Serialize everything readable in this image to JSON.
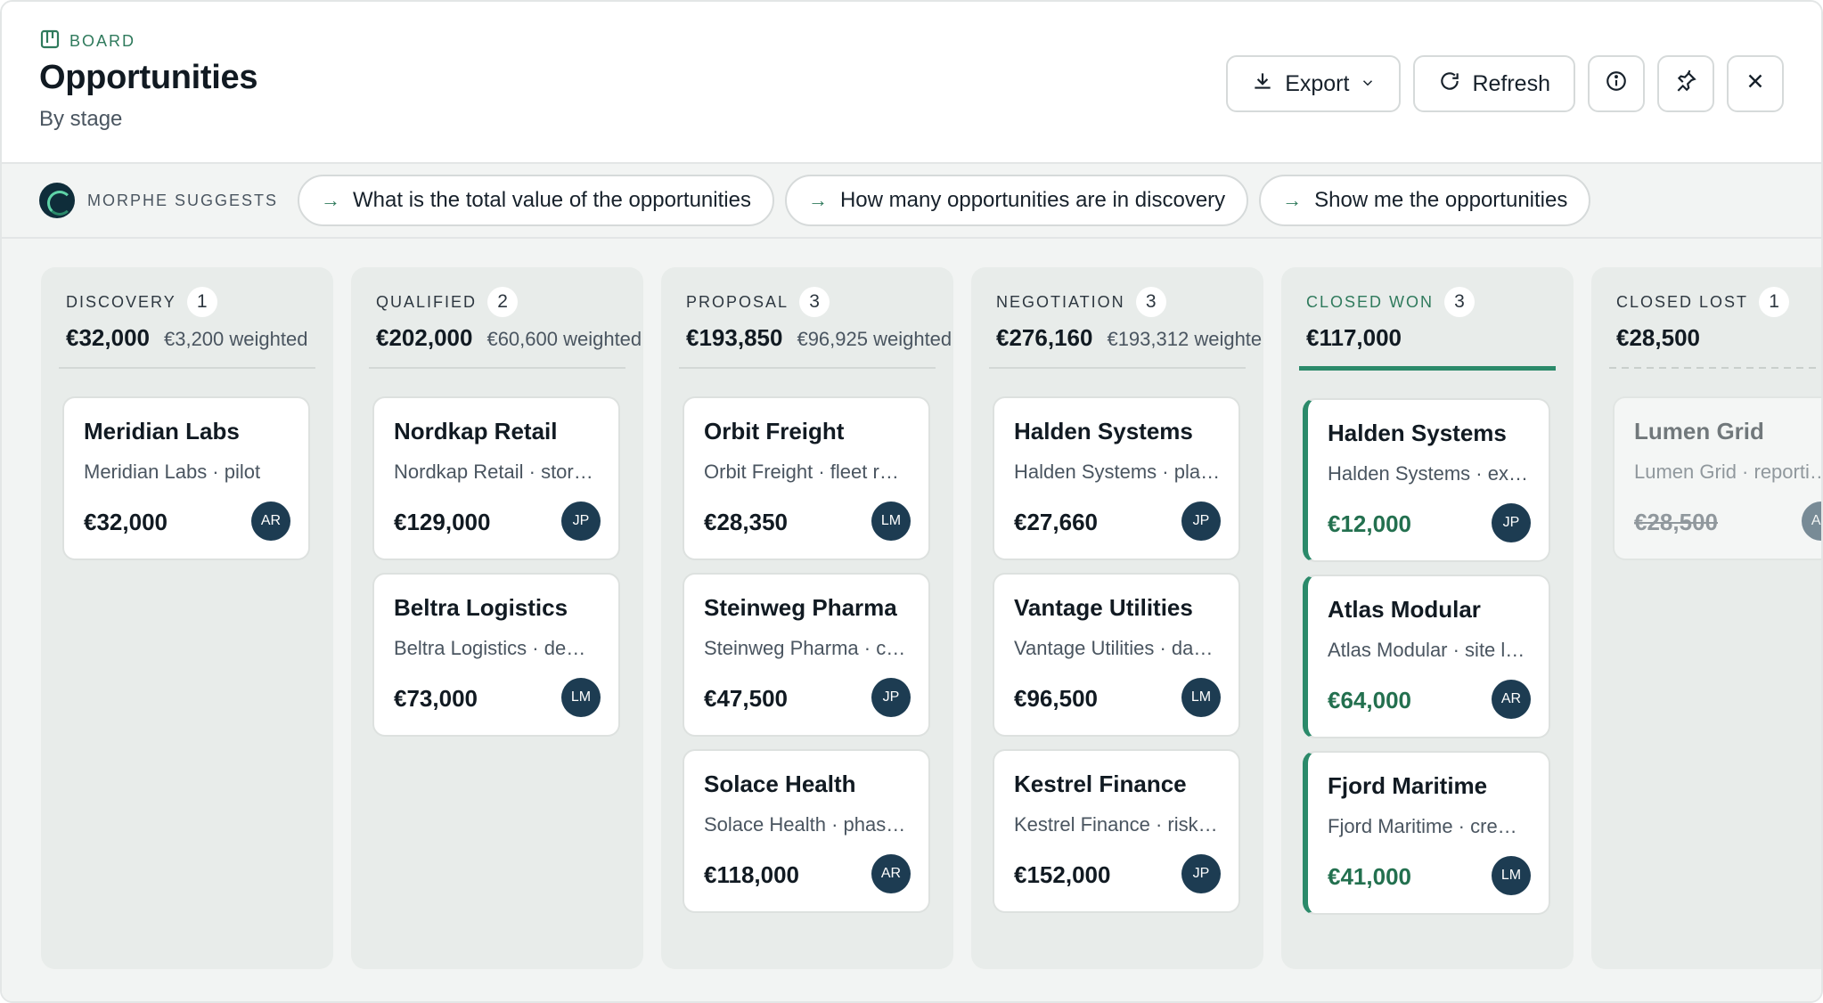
{
  "header": {
    "eyebrow": "BOARD",
    "title": "Opportunities",
    "subtitle": "By stage",
    "export_label": "Export",
    "refresh_label": "Refresh"
  },
  "suggest": {
    "label": "MORPHE SUGGESTS",
    "chips": [
      "What is the total value of the opportunities",
      "How many opportunities are in discovery",
      "Show me the opportunities"
    ]
  },
  "colors": {
    "accent": "#2b8a6a",
    "avatar": "#1d3c52",
    "board_bg": "#f2f4f3"
  },
  "columns": [
    {
      "name": "DISCOVERY",
      "count": "1",
      "total": "€32,000",
      "weighted": "€3,200 weighted",
      "style": "normal",
      "cards": [
        {
          "name": "Meridian Labs",
          "desc": "Meridian Labs · pilot",
          "value": "€32,000",
          "owner": "AR"
        }
      ]
    },
    {
      "name": "QUALIFIED",
      "count": "2",
      "total": "€202,000",
      "weighted": "€60,600 weighted",
      "style": "normal",
      "cards": [
        {
          "name": "Nordkap Retail",
          "desc": "Nordkap Retail · stor…",
          "value": "€129,000",
          "owner": "JP"
        },
        {
          "name": "Beltra Logistics",
          "desc": "Beltra Logistics · de…",
          "value": "€73,000",
          "owner": "LM"
        }
      ]
    },
    {
      "name": "PROPOSAL",
      "count": "3",
      "total": "€193,850",
      "weighted": "€96,925 weighted",
      "style": "normal",
      "cards": [
        {
          "name": "Orbit Freight",
          "desc": "Orbit Freight · fleet r…",
          "value": "€28,350",
          "owner": "LM"
        },
        {
          "name": "Steinweg Pharma",
          "desc": "Steinweg Pharma · c…",
          "value": "€47,500",
          "owner": "JP"
        },
        {
          "name": "Solace Health",
          "desc": "Solace Health · phas…",
          "value": "€118,000",
          "owner": "AR"
        }
      ]
    },
    {
      "name": "NEGOTIATION",
      "count": "3",
      "total": "€276,160",
      "weighted": "€193,312 weighte",
      "style": "normal",
      "cards": [
        {
          "name": "Halden Systems",
          "desc": "Halden Systems · pla…",
          "value": "€27,660",
          "owner": "JP"
        },
        {
          "name": "Vantage Utilities",
          "desc": "Vantage Utilities · da…",
          "value": "€96,500",
          "owner": "LM"
        },
        {
          "name": "Kestrel Finance",
          "desc": "Kestrel Finance · risk…",
          "value": "€152,000",
          "owner": "JP"
        }
      ]
    },
    {
      "name": "CLOSED WON",
      "count": "3",
      "total": "€117,000",
      "weighted": "",
      "style": "won",
      "cards": [
        {
          "name": "Halden Systems",
          "desc": "Halden Systems · ex…",
          "value": "€12,000",
          "owner": "JP"
        },
        {
          "name": "Atlas Modular",
          "desc": "Atlas Modular · site l…",
          "value": "€64,000",
          "owner": "AR"
        },
        {
          "name": "Fjord Maritime",
          "desc": "Fjord Maritime · cre…",
          "value": "€41,000",
          "owner": "LM"
        }
      ]
    },
    {
      "name": "CLOSED LOST",
      "count": "1",
      "total": "€28,500",
      "weighted": "",
      "style": "lost",
      "cards": [
        {
          "name": "Lumen Grid",
          "desc": "Lumen Grid · reporti…",
          "value": "€28,500",
          "owner": "AR"
        }
      ]
    }
  ]
}
